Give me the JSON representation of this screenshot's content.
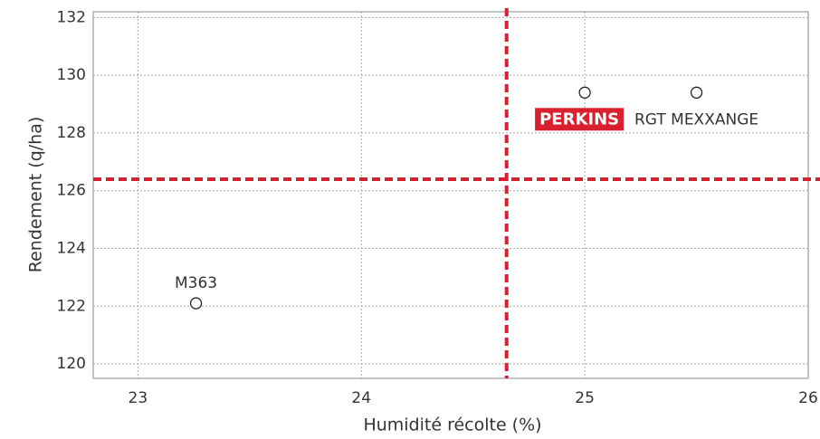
{
  "chart_data": {
    "type": "scatter",
    "x_label": "Humidité récolte (%)",
    "y_label": "Rendement (q/ha)",
    "labels": [
      "M363",
      "PERKINS",
      "RGT MEXXANGE"
    ],
    "x": [
      23.26,
      25.0,
      25.5
    ],
    "y": [
      122.1,
      129.4,
      129.4
    ],
    "highlight": [
      false,
      true,
      false
    ],
    "xlim": [
      22.8,
      26.0
    ],
    "xticks": [
      23,
      24,
      25,
      26
    ],
    "ylim": [
      119.5,
      132.2
    ],
    "yticks": [
      120,
      122,
      124,
      126,
      128,
      130,
      132
    ],
    "grid": true,
    "reference_lines": {
      "x": 24.65,
      "y": 126.4,
      "color": "#d9202f"
    },
    "highlight_color": "#d9202f"
  }
}
